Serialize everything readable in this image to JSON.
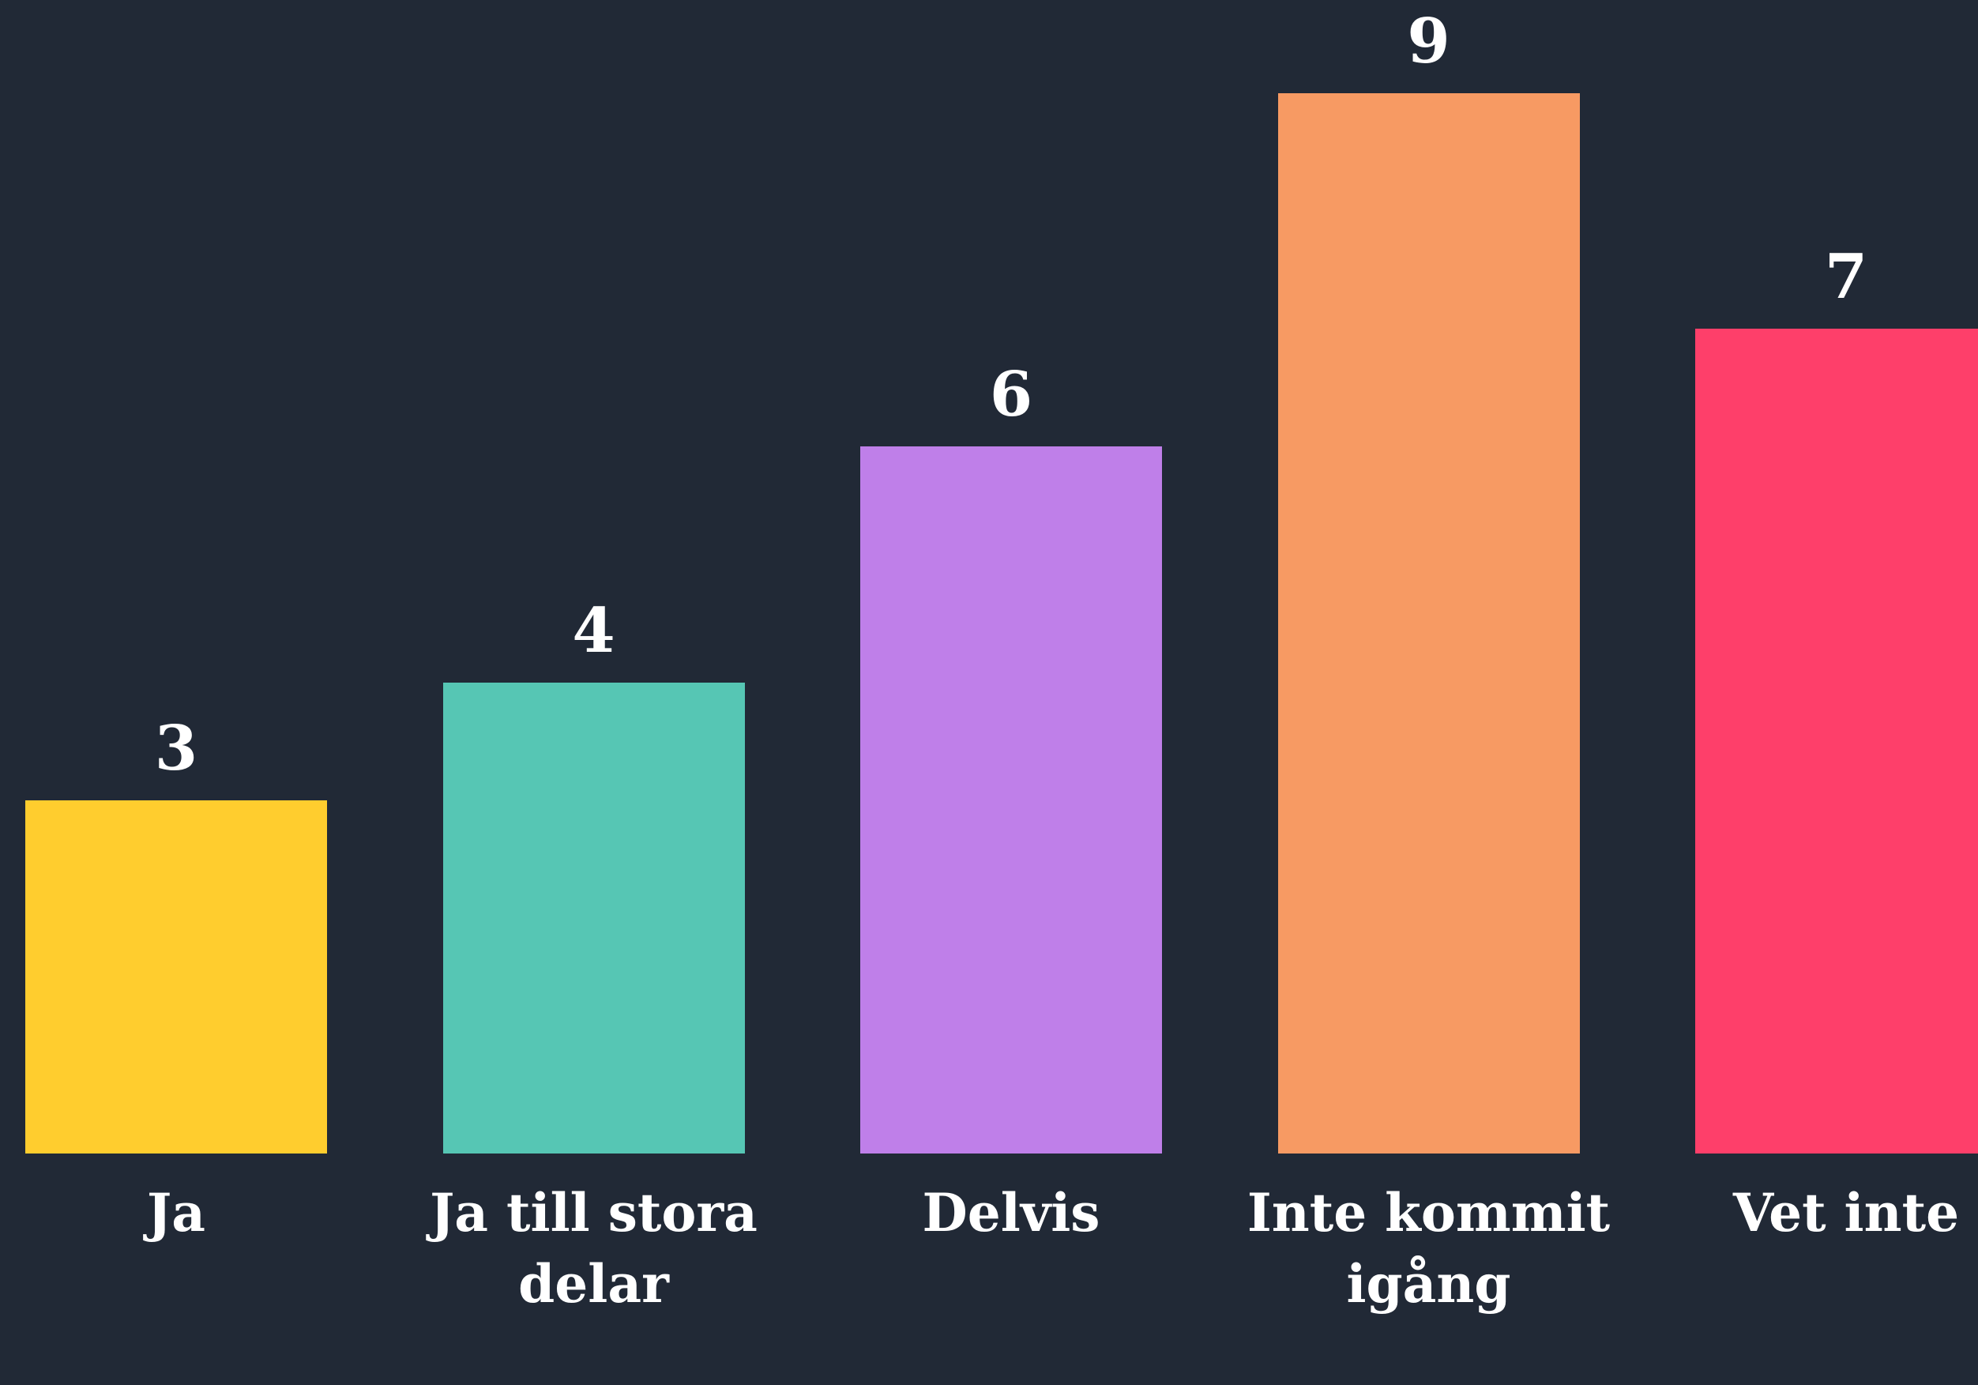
{
  "chart_data": {
    "type": "bar",
    "categories": [
      "Ja",
      "Ja till stora delar",
      "Delvis",
      "Inte kommit igång",
      "Vet inte"
    ],
    "values": [
      3,
      4,
      6,
      9,
      7
    ],
    "colors": [
      "#ffcd2e",
      "#56c6b4",
      "#bf7fe9",
      "#f79a63",
      "#fe3f6a"
    ],
    "ylim": [
      0,
      9
    ]
  }
}
